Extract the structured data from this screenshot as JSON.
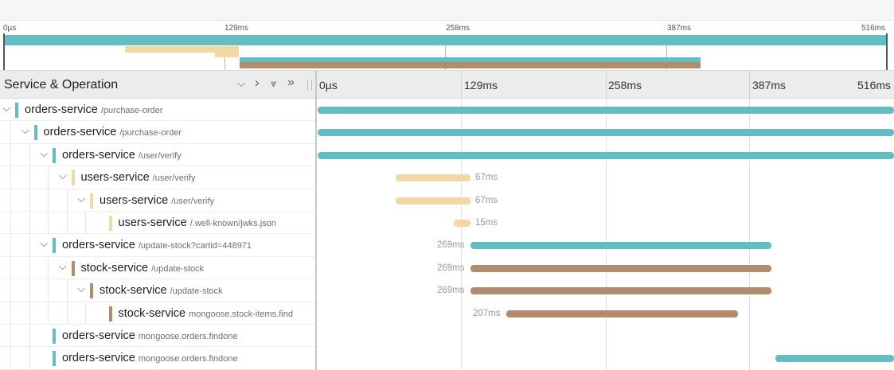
{
  "colors": {
    "orders": "#63bec4",
    "users": "#f2d9a3",
    "stock": "#b28c6c"
  },
  "minimap": {
    "ticks": [
      "0µs",
      "129ms",
      "258ms",
      "387ms",
      "516ms"
    ]
  },
  "header": {
    "title": "Service & Operation",
    "controls": [
      {
        "icon": "chevron-down-icon",
        "glyph": "⌵"
      },
      {
        "icon": "chevron-right-icon",
        "glyph": "›"
      },
      {
        "icon": "double-chevron-down-icon",
        "glyph": "⩔"
      },
      {
        "icon": "double-chevron-right-icon",
        "glyph": "»"
      }
    ],
    "ticks": [
      "0µs",
      "129ms",
      "258ms",
      "387ms",
      "516ms"
    ]
  },
  "spans": [
    {
      "service": "orders-service",
      "operation": "/purchase-order",
      "depth": 0,
      "expanded": true,
      "color": "orders",
      "duration": ""
    },
    {
      "service": "orders-service",
      "operation": "/purchase-order",
      "depth": 1,
      "expanded": true,
      "color": "orders",
      "duration": ""
    },
    {
      "service": "orders-service",
      "operation": "/user/verify",
      "depth": 2,
      "expanded": true,
      "color": "orders",
      "duration": ""
    },
    {
      "service": "users-service",
      "operation": "/user/verify",
      "depth": 3,
      "expanded": true,
      "color": "users",
      "duration": "67ms"
    },
    {
      "service": "users-service",
      "operation": "/user/verify",
      "depth": 4,
      "expanded": true,
      "color": "users",
      "duration": "67ms"
    },
    {
      "service": "users-service",
      "operation": "/.well-known/jwks.json",
      "depth": 5,
      "expanded": false,
      "color": "users",
      "duration": "15ms"
    },
    {
      "service": "orders-service",
      "operation": "/update-stock?cartid=448971",
      "depth": 2,
      "expanded": true,
      "color": "orders",
      "duration": "269ms"
    },
    {
      "service": "stock-service",
      "operation": "/update-stock",
      "depth": 3,
      "expanded": true,
      "color": "stock",
      "duration": "269ms"
    },
    {
      "service": "stock-service",
      "operation": "/update-stock",
      "depth": 4,
      "expanded": true,
      "color": "stock",
      "duration": "269ms"
    },
    {
      "service": "stock-service",
      "operation": "mongoose.stock-items.find",
      "depth": 5,
      "expanded": false,
      "color": "stock",
      "duration": "207ms"
    },
    {
      "service": "orders-service",
      "operation": "mongoose.orders.findone",
      "depth": 2,
      "expanded": false,
      "color": "orders",
      "duration": ""
    },
    {
      "service": "orders-service",
      "operation": "mongoose.orders.findone",
      "depth": 2,
      "expanded": false,
      "color": "orders",
      "duration": ""
    }
  ]
}
